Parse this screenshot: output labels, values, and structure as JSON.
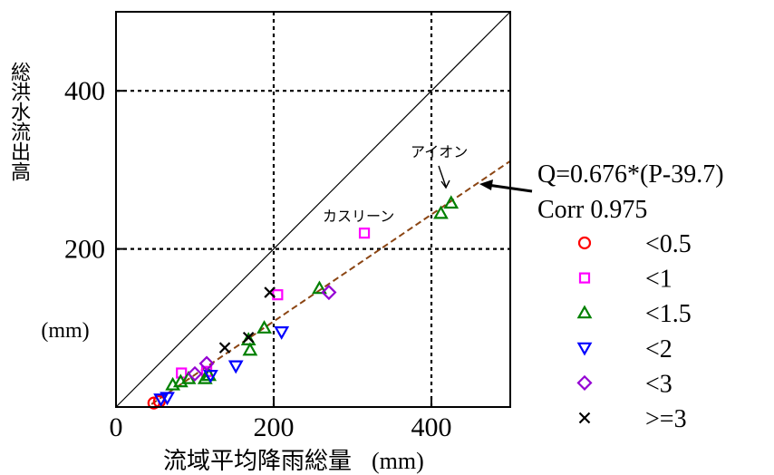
{
  "chart_data": {
    "type": "scatter",
    "xlabel": "流域平均降雨総量",
    "xunit": "(mm)",
    "ylabel": "総洪水流出高",
    "yunit": "(mm)",
    "xlim": [
      0,
      500
    ],
    "ylim": [
      0,
      500
    ],
    "xticks": [
      "0",
      "200",
      "400"
    ],
    "yticks": [
      "200",
      "400"
    ],
    "grid": "dotted at 200 and 400",
    "legend_placement": "right",
    "reference_line": {
      "type": "1:1",
      "x": [
        0,
        500
      ],
      "y": [
        0,
        500
      ]
    },
    "regression": {
      "label": "Q=0.676*(P-39.7)",
      "corr_label": "Corr 0.975",
      "slope": 0.676,
      "intercept_x": 39.7,
      "x_range": [
        45,
        500
      ],
      "color": "#8b4513"
    },
    "annotations": [
      {
        "text": "アイオン",
        "x": 425,
        "y": 285
      },
      {
        "text": "カスリーン",
        "x": 315,
        "y": 235
      }
    ],
    "series": [
      {
        "name": "<0.5",
        "marker": "circle",
        "color": "#ff0000",
        "points": [
          [
            48,
            5
          ],
          [
            55,
            7
          ]
        ]
      },
      {
        "name": "<1",
        "marker": "square",
        "color": "#ff00ff",
        "points": [
          [
            83,
            43
          ],
          [
            115,
            45
          ],
          [
            205,
            142
          ],
          [
            315,
            220
          ]
        ]
      },
      {
        "name": "<1.5",
        "marker": "triangle-up",
        "color": "#008000",
        "points": [
          [
            72,
            28
          ],
          [
            82,
            32
          ],
          [
            92,
            36
          ],
          [
            113,
            36
          ],
          [
            118,
            40
          ],
          [
            168,
            85
          ],
          [
            170,
            72
          ],
          [
            188,
            100
          ],
          [
            258,
            150
          ],
          [
            412,
            245
          ],
          [
            425,
            258
          ]
        ]
      },
      {
        "name": "<2",
        "marker": "triangle-down",
        "color": "#0000ff",
        "points": [
          [
            57,
            10
          ],
          [
            65,
            12
          ],
          [
            120,
            40
          ],
          [
            152,
            52
          ],
          [
            210,
            95
          ]
        ]
      },
      {
        "name": "<3",
        "marker": "diamond",
        "color": "#9400d3",
        "points": [
          [
            100,
            42
          ],
          [
            115,
            55
          ],
          [
            270,
            145
          ]
        ]
      },
      {
        "name": ">=3",
        "marker": "x",
        "color": "#000000",
        "points": [
          [
            138,
            75
          ],
          [
            168,
            88
          ],
          [
            195,
            145
          ]
        ]
      }
    ]
  }
}
